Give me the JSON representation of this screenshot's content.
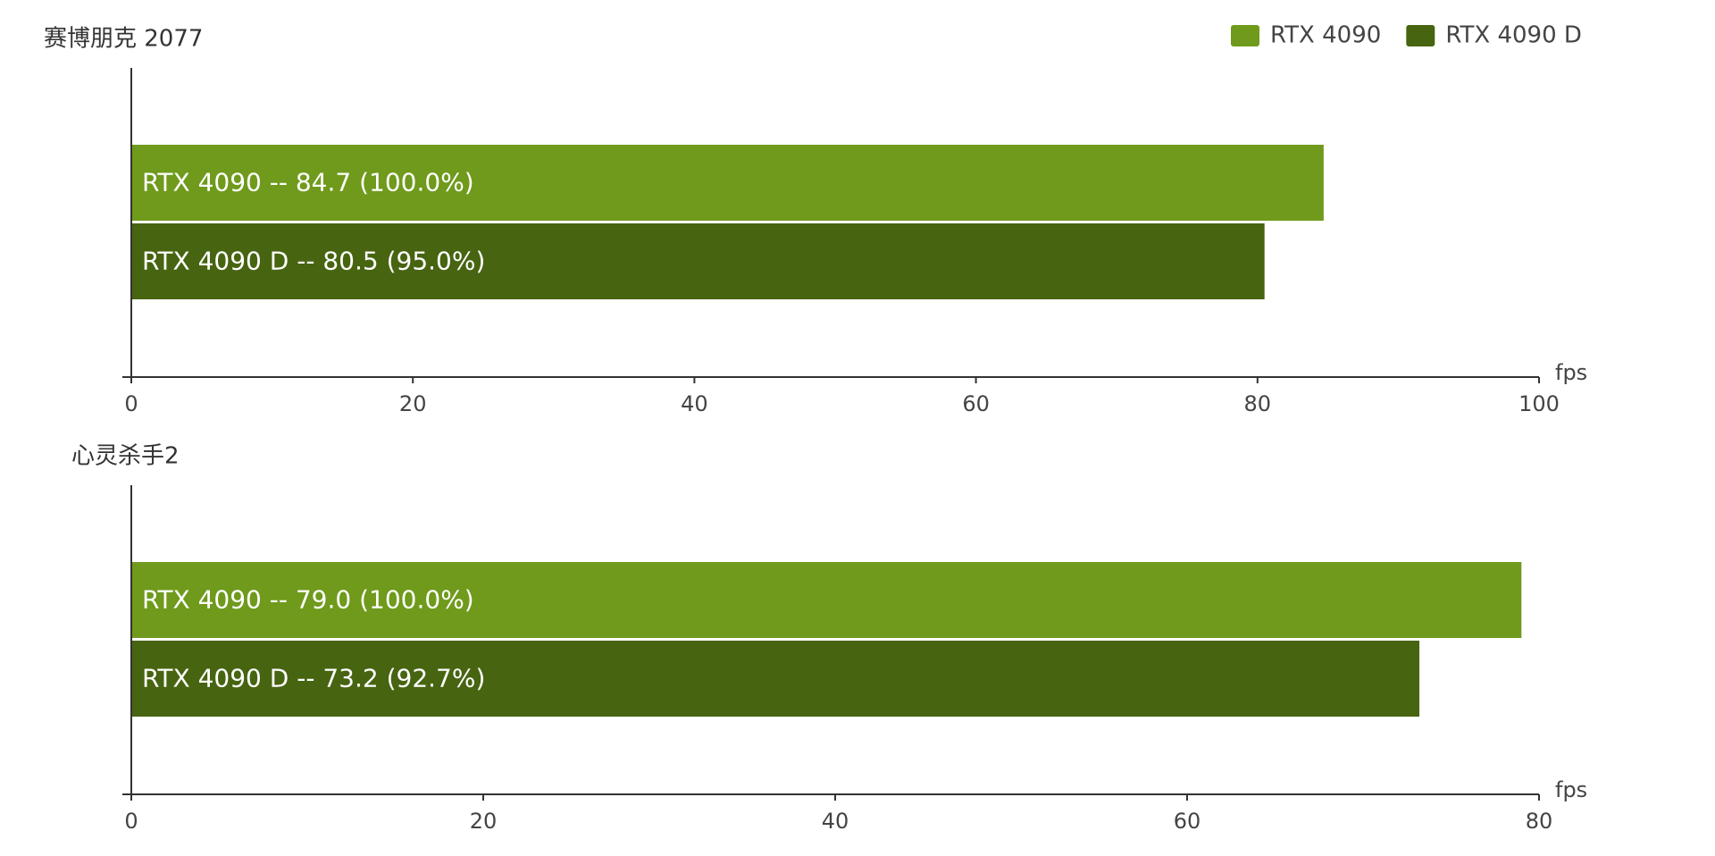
{
  "chart_data": [
    {
      "type": "bar",
      "orientation": "horizontal",
      "title": "赛博朋克 2077",
      "xlabel": "fps",
      "xlim": [
        0,
        100
      ],
      "xticks": [
        0,
        20,
        40,
        60,
        80,
        100
      ],
      "legend": "top-right",
      "series": [
        {
          "name": "RTX 4090",
          "color": "#6f9a1c",
          "values": [
            84.7
          ],
          "value_labels": [
            "RTX 4090  --  84.7 (100.0%)"
          ]
        },
        {
          "name": "RTX 4090 D",
          "color": "#476411",
          "values": [
            80.5
          ],
          "value_labels": [
            "RTX 4090 D  --  80.5 (95.0%)"
          ]
        }
      ]
    },
    {
      "type": "bar",
      "orientation": "horizontal",
      "title": "心灵杀手2",
      "xlabel": "fps",
      "xlim": [
        0,
        80
      ],
      "xticks": [
        0,
        20,
        40,
        60,
        80
      ],
      "series": [
        {
          "color": "#6f9a1c",
          "values": [
            79.0
          ],
          "value_labels": [
            "RTX 4090  --  79.0 (100.0%)"
          ]
        },
        {
          "color": "#476411",
          "values": [
            73.2
          ],
          "value_labels": [
            "RTX 4090 D  --  73.2 (92.7%)"
          ]
        }
      ]
    }
  ]
}
